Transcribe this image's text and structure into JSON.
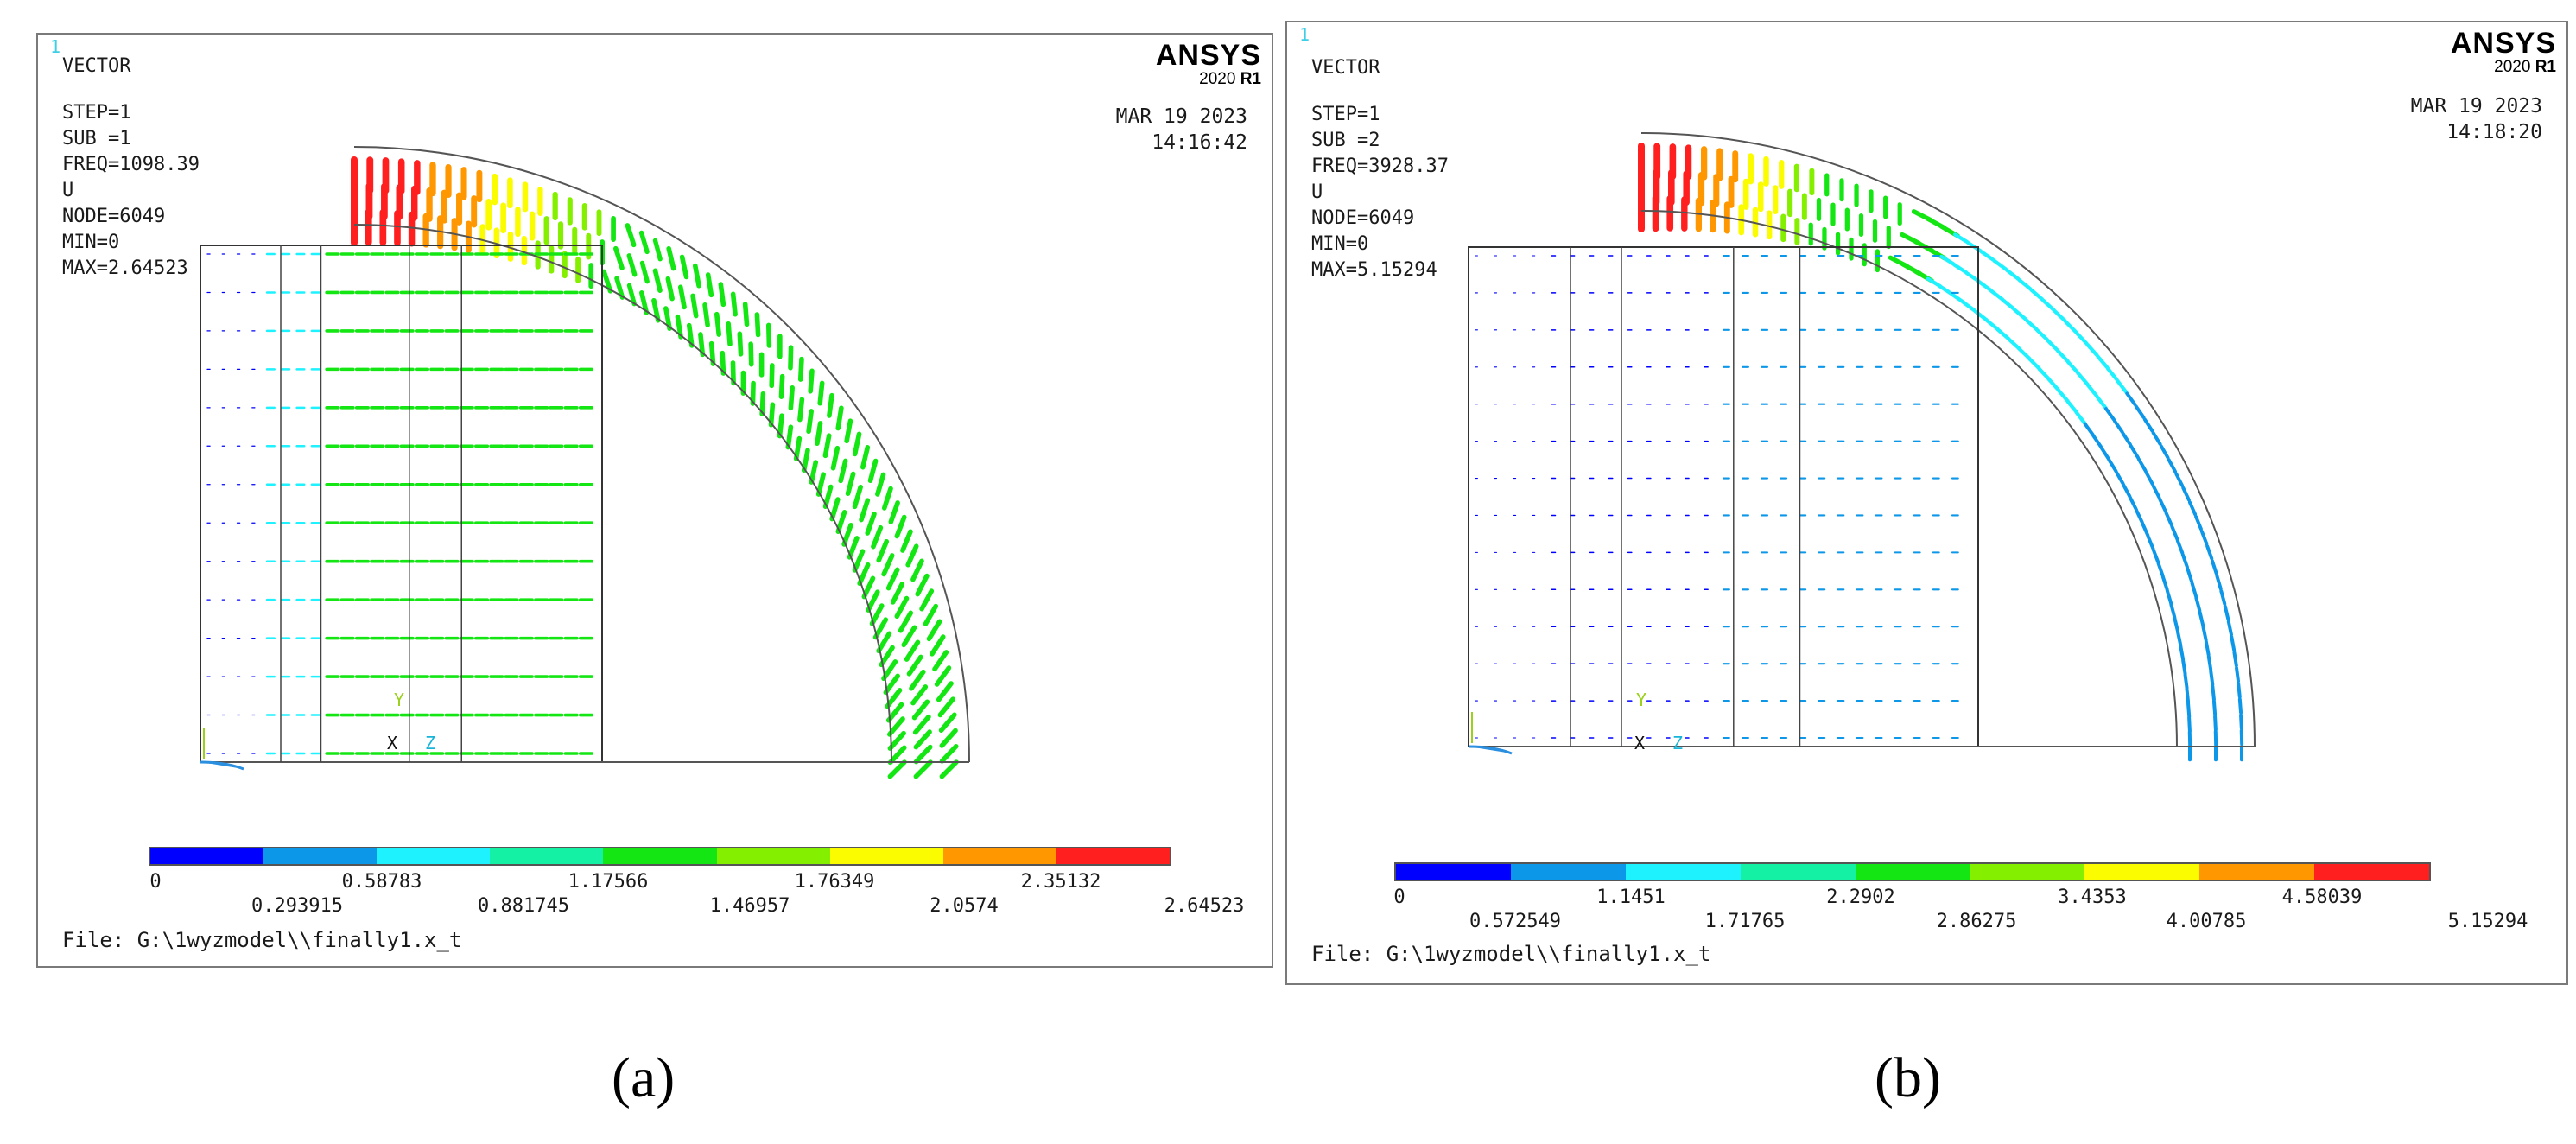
{
  "colors": {
    "legend": [
      "#0000ff",
      "#0d97e8",
      "#1ff2ff",
      "#14f0a4",
      "#14e614",
      "#84f000",
      "#fcfc00",
      "#ff9800",
      "#ff1f1f"
    ]
  },
  "panels": [
    {
      "corner": "1",
      "title": "VECTOR",
      "info": [
        "STEP=1",
        "SUB =1",
        "FREQ=1098.39",
        "U",
        "NODE=6049",
        "MIN=0",
        "MAX=2.64523"
      ],
      "brand": "ANSYS",
      "version_year": "2020",
      "version_rel": "R1",
      "date": "MAR 19 2023",
      "time": "14:16:42",
      "legend_top": [
        "0",
        "0.58783",
        "1.17566",
        "1.76349",
        "2.35132"
      ],
      "legend_bottom": [
        "0.293915",
        "0.881745",
        "1.46957",
        "2.0574",
        "2.64523"
      ],
      "file": "File: G:\\1wyzmodel\\\\finally1.x_t",
      "axis": {
        "y": "Y",
        "x": "X",
        "z": "Z"
      },
      "caption": "(a)"
    },
    {
      "corner": "1",
      "title": "VECTOR",
      "info": [
        "STEP=1",
        "SUB =2",
        "FREQ=3928.37",
        "U",
        "NODE=6049",
        "MIN=0",
        "MAX=5.15294"
      ],
      "brand": "ANSYS",
      "version_year": "2020",
      "version_rel": "R1",
      "date": "MAR 19 2023",
      "time": "14:18:20",
      "legend_top": [
        "0",
        "1.1451",
        "2.2902",
        "3.4353",
        "4.58039"
      ],
      "legend_bottom": [
        "0.572549",
        "1.71765",
        "2.86275",
        "4.00785",
        "5.15294"
      ],
      "file": "File: G:\\1wyzmodel\\\\finally1.x_t",
      "axis": {
        "y": "Y",
        "x": "X",
        "z": "Z"
      },
      "caption": "(b)"
    }
  ]
}
